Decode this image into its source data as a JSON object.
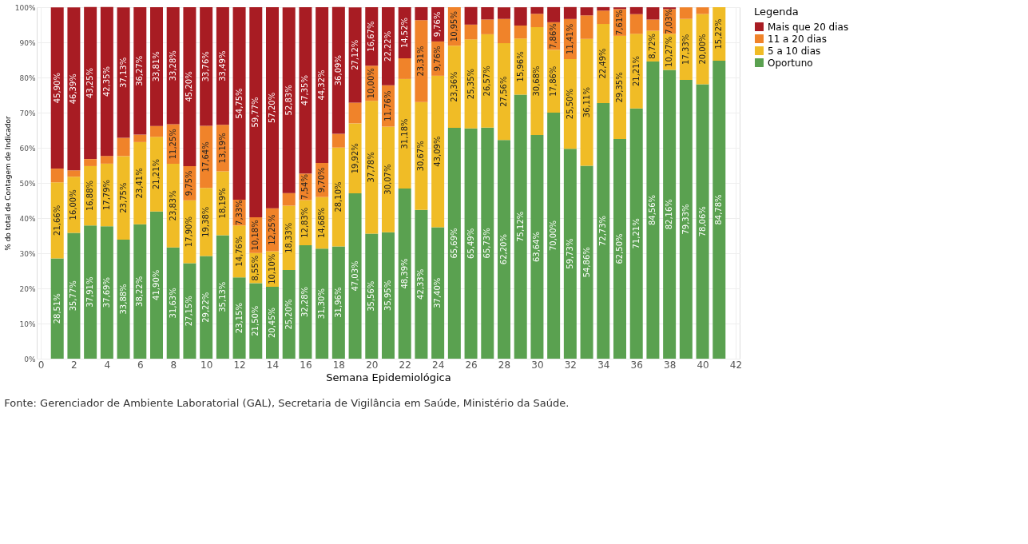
{
  "chart_data": {
    "type": "bar",
    "stacked": true,
    "x": [
      1,
      2,
      3,
      4,
      5,
      6,
      7,
      8,
      9,
      10,
      11,
      12,
      13,
      14,
      15,
      16,
      17,
      18,
      19,
      20,
      21,
      22,
      23,
      24,
      25,
      26,
      27,
      28,
      29,
      30,
      31,
      32,
      33,
      34,
      35,
      36,
      37,
      38,
      39,
      40,
      41
    ],
    "xlim": [
      0,
      42
    ],
    "xticks": [
      0,
      2,
      4,
      6,
      8,
      10,
      12,
      14,
      16,
      18,
      20,
      22,
      24,
      26,
      28,
      30,
      32,
      34,
      36,
      38,
      40,
      42
    ],
    "ylim": [
      0,
      100
    ],
    "yticks": [
      {
        "value": 0,
        "label": "0%"
      },
      {
        "value": 10,
        "label": "10%"
      },
      {
        "value": 20,
        "label": "20%"
      },
      {
        "value": 30,
        "label": "30%"
      },
      {
        "value": 40,
        "label": "40%"
      },
      {
        "value": 50,
        "label": "50%"
      },
      {
        "value": 60,
        "label": "60%"
      },
      {
        "value": 70,
        "label": "70%"
      },
      {
        "value": 80,
        "label": "80%"
      },
      {
        "value": 90,
        "label": "90%"
      },
      {
        "value": 100,
        "label": "100%"
      }
    ],
    "xlabel": "Semana Epidemiológica",
    "ylabel": "% do total de Contagem de Indicador",
    "legend_title": "Legenda",
    "legend": "right",
    "grid": true,
    "annotations": [
      "Fonte: Gerenciador de Ambiente Laboratorial (GAL), Secretaria de Vigilância em Saúde, Ministério da Saúde."
    ],
    "series": [
      {
        "name": "Oportuno",
        "color": "#5aa150",
        "values": [
          28.51,
          35.77,
          37.91,
          37.69,
          33.88,
          38.22,
          41.9,
          31.63,
          27.15,
          29.22,
          35.13,
          23.15,
          21.5,
          20.45,
          25.2,
          32.28,
          31.3,
          31.96,
          47.03,
          35.56,
          35.95,
          48.39,
          42.33,
          37.4,
          65.69,
          65.49,
          65.73,
          62.2,
          75.12,
          63.64,
          70.0,
          59.73,
          54.86,
          72.73,
          62.5,
          71.21,
          84.56,
          82.16,
          79.33,
          78.06,
          84.78
        ],
        "value_labels": [
          "28,51%",
          "35,77%",
          "37,91%",
          "37,69%",
          "33,88%",
          "38,22%",
          "41,90%",
          "31,63%",
          "27,15%",
          "29,22%",
          "35,13%",
          "23,15%",
          "21,50%",
          "20,45%",
          "25,20%",
          "32,28%",
          "31,30%",
          "31,96%",
          "47,03%",
          "35,56%",
          "35,95%",
          "48,39%",
          "42,33%",
          "37,40%",
          "65,69%",
          "65,49%",
          "65,73%",
          "62,20%",
          "75,12%",
          "63,64%",
          "70,00%",
          "59,73%",
          "54,86%",
          "72,73%",
          "62,50%",
          "71,21%",
          "84,56%",
          "82,16%",
          "79,33%",
          "78,06%",
          "84,78%"
        ]
      },
      {
        "name": "5 a 10 dias",
        "color": "#f0bc26",
        "values": [
          21.66,
          16.0,
          16.88,
          17.79,
          23.75,
          23.41,
          21.21,
          23.83,
          17.9,
          19.38,
          18.19,
          14.76,
          8.55,
          10.1,
          18.33,
          12.83,
          14.68,
          28.1,
          19.92,
          37.78,
          30.07,
          31.18,
          30.67,
          43.09,
          23.36,
          25.35,
          26.57,
          27.56,
          15.96,
          30.68,
          17.86,
          25.5,
          36.11,
          22.49,
          29.35,
          21.21,
          8.72,
          10.27,
          17.33,
          20.0,
          15.22
        ],
        "value_labels": [
          "21,66%",
          "16,00%",
          "16,88%",
          "17,79%",
          "23,75%",
          "23,41%",
          "21,21%",
          "23,83%",
          "17,90%",
          "19,38%",
          "18,19%",
          "14,76%",
          "8,55%",
          "10,10%",
          "18,33%",
          "12,83%",
          "14,68%",
          "28,10%",
          "19,92%",
          "37,78%",
          "30,07%",
          "31,18%",
          "30,67%",
          "43,09%",
          "23,36%",
          "25,35%",
          "26,57%",
          "27,56%",
          "15,96%",
          "30,68%",
          "17,86%",
          "25,50%",
          "36,11%",
          "22,49%",
          "29,35%",
          "21,21%",
          "8,72%",
          "10,27%",
          "17,33%",
          "20,00%",
          "15,22%"
        ]
      },
      {
        "name": "11 a 20 dias",
        "color": "#f0832a",
        "values": [
          3.9,
          1.8,
          2.0,
          2.2,
          5.2,
          2.1,
          3.1,
          11.25,
          9.75,
          17.64,
          13.19,
          7.33,
          10.18,
          12.25,
          3.6,
          7.54,
          9.7,
          3.9,
          5.9,
          10.0,
          11.76,
          5.9,
          23.31,
          9.76,
          10.95,
          4.2,
          4.2,
          6.9,
          3.7,
          3.8,
          7.86,
          11.41,
          6.7,
          3.8,
          7.61,
          5.6,
          3.2,
          7.03,
          3.3,
          1.9,
          0
        ],
        "value_labels": [
          null,
          null,
          null,
          null,
          null,
          null,
          null,
          "11,25%",
          "9,75%",
          "17,64%",
          "13,19%",
          "7,33%",
          "10,18%",
          "12,25%",
          null,
          "7,54%",
          "9,70%",
          null,
          null,
          "10,00%",
          "11,76%",
          null,
          "23,31%",
          "9,76%",
          "10,95%",
          null,
          null,
          null,
          null,
          null,
          "7,86%",
          "11,41%",
          null,
          null,
          "7,61%",
          null,
          null,
          "7,03%",
          null,
          null,
          null
        ]
      },
      {
        "name": "Mais que 20 dias",
        "color": "#a81c23",
        "values": [
          45.9,
          46.39,
          43.25,
          42.35,
          37.13,
          36.27,
          33.81,
          33.28,
          45.2,
          33.76,
          33.49,
          54.75,
          59.77,
          57.2,
          52.83,
          47.35,
          44.32,
          36.09,
          27.12,
          16.67,
          22.22,
          14.52,
          3.7,
          9.76,
          0,
          5.0,
          3.5,
          3.3,
          5.2,
          1.9,
          4.3,
          3.4,
          2.3,
          1.0,
          0.5,
          2.0,
          3.5,
          0.5,
          0,
          0,
          0
        ],
        "value_labels": [
          "45,90%",
          "46,39%",
          "43,25%",
          "42,35%",
          "37,13%",
          "36,27%",
          "33,81%",
          "33,28%",
          "45,20%",
          "33,76%",
          "33,49%",
          "54,75%",
          "59,77%",
          "57,20%",
          "52,83%",
          "47,35%",
          "44,32%",
          "36,09%",
          "27,12%",
          "16,67%",
          "22,22%",
          "14,52%",
          null,
          "9,76%",
          null,
          null,
          null,
          null,
          null,
          null,
          null,
          null,
          null,
          null,
          null,
          null,
          null,
          null,
          null,
          null,
          null
        ]
      }
    ]
  }
}
